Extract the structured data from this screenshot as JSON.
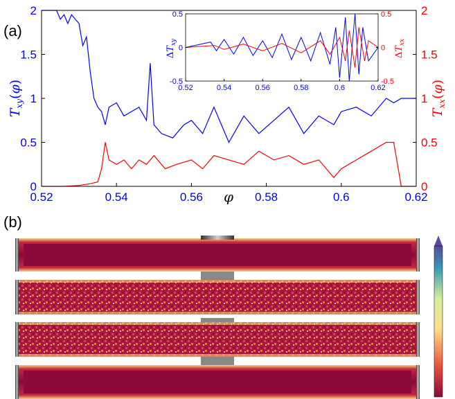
{
  "panel_a_label": "(a)",
  "panel_b_label": "(b)",
  "colors": {
    "txy": "#0000ff",
    "txx": "#ff0000",
    "axis": "#000000",
    "strip_bg": "#8b0a3a"
  },
  "chart_data": [
    {
      "type": "line",
      "xlabel": "φ",
      "ylabel": "T_xy(φ)",
      "ylabel_right": "T_xx(φ)",
      "xlim": [
        0.52,
        0.62
      ],
      "ylim": [
        0,
        2
      ],
      "ylim_right": [
        0,
        2
      ],
      "xticks": [
        "0.52",
        "0.54",
        "0.56",
        "0.58",
        "0.6",
        "0.62"
      ],
      "yticks": [
        "0",
        "0.5",
        "1",
        "1.5",
        "2"
      ],
      "yticks_right": [
        "0",
        "0.5",
        "1",
        "1.5",
        "2"
      ],
      "series": [
        {
          "name": "T_xy",
          "axis": "left",
          "x": [
            0.52,
            0.524,
            0.525,
            0.526,
            0.527,
            0.528,
            0.529,
            0.53,
            0.531,
            0.532,
            0.533,
            0.534,
            0.535,
            0.536,
            0.537,
            0.538,
            0.54,
            0.542,
            0.544,
            0.546,
            0.548,
            0.549,
            0.55,
            0.552,
            0.555,
            0.558,
            0.56,
            0.563,
            0.566,
            0.57,
            0.574,
            0.578,
            0.582,
            0.586,
            0.59,
            0.594,
            0.598,
            0.6,
            0.604,
            0.608,
            0.612,
            0.614,
            0.616,
            0.62
          ],
          "y": [
            2.0,
            2.0,
            1.9,
            1.95,
            1.85,
            1.95,
            1.9,
            1.85,
            1.6,
            1.7,
            1.3,
            1.0,
            0.9,
            0.85,
            0.7,
            0.9,
            0.95,
            0.8,
            0.85,
            0.9,
            0.75,
            1.4,
            0.7,
            0.6,
            0.55,
            0.7,
            0.75,
            0.6,
            0.9,
            0.5,
            0.8,
            0.6,
            0.75,
            0.9,
            0.6,
            0.8,
            0.7,
            0.85,
            0.9,
            0.8,
            1.0,
            0.95,
            1.0,
            1.0
          ]
        },
        {
          "name": "T_xx",
          "axis": "right",
          "x": [
            0.52,
            0.526,
            0.53,
            0.533,
            0.535,
            0.536,
            0.537,
            0.538,
            0.54,
            0.542,
            0.544,
            0.546,
            0.548,
            0.55,
            0.553,
            0.556,
            0.56,
            0.563,
            0.566,
            0.57,
            0.574,
            0.578,
            0.582,
            0.586,
            0.59,
            0.594,
            0.598,
            0.6,
            0.604,
            0.608,
            0.612,
            0.614,
            0.616,
            0.62
          ],
          "y": [
            0.0,
            0.0,
            0.01,
            0.03,
            0.05,
            0.2,
            0.5,
            0.3,
            0.25,
            0.3,
            0.2,
            0.3,
            0.25,
            0.35,
            0.2,
            0.25,
            0.3,
            0.2,
            0.35,
            0.3,
            0.25,
            0.4,
            0.3,
            0.35,
            0.25,
            0.3,
            0.1,
            0.2,
            0.3,
            0.4,
            0.5,
            0.5,
            0.0,
            0.0
          ]
        }
      ]
    },
    {
      "type": "line",
      "inset": true,
      "ylabel": "ΔT_xy",
      "ylabel_right": "ΔT_xx",
      "xlim": [
        0.52,
        0.62
      ],
      "ylim": [
        -0.5,
        0.5
      ],
      "xticks": [
        "0.52",
        "0.54",
        "0.56",
        "0.58",
        "0.6",
        "0.62"
      ],
      "yticks": [
        "-0.5",
        "0",
        "0.5"
      ],
      "yticks_right": [
        "-0.5",
        "0",
        "0.5"
      ],
      "series": [
        {
          "name": "ΔT_xy",
          "axis": "left",
          "x": [
            0.52,
            0.533,
            0.536,
            0.54,
            0.545,
            0.55,
            0.555,
            0.56,
            0.565,
            0.57,
            0.575,
            0.58,
            0.585,
            0.59,
            0.595,
            0.598,
            0.6,
            0.603,
            0.605,
            0.608,
            0.61,
            0.612,
            0.615,
            0.62
          ],
          "y": [
            0.0,
            0.08,
            -0.05,
            0.12,
            -0.1,
            0.15,
            -0.12,
            0.1,
            -0.15,
            0.2,
            -0.18,
            0.15,
            -0.2,
            0.22,
            -0.25,
            0.3,
            -0.45,
            0.45,
            -0.5,
            0.5,
            -0.4,
            0.3,
            -0.2,
            0.0
          ]
        },
        {
          "name": "ΔT_xx",
          "axis": "right",
          "x": [
            0.52,
            0.535,
            0.54,
            0.55,
            0.56,
            0.57,
            0.58,
            0.59,
            0.595,
            0.6,
            0.603,
            0.605,
            0.608,
            0.61,
            0.613,
            0.615,
            0.62
          ],
          "y": [
            0.0,
            0.03,
            -0.03,
            0.05,
            -0.05,
            0.06,
            -0.08,
            0.1,
            -0.1,
            0.15,
            -0.2,
            0.25,
            -0.3,
            0.3,
            -0.2,
            0.1,
            0.0
          ]
        }
      ]
    }
  ]
}
